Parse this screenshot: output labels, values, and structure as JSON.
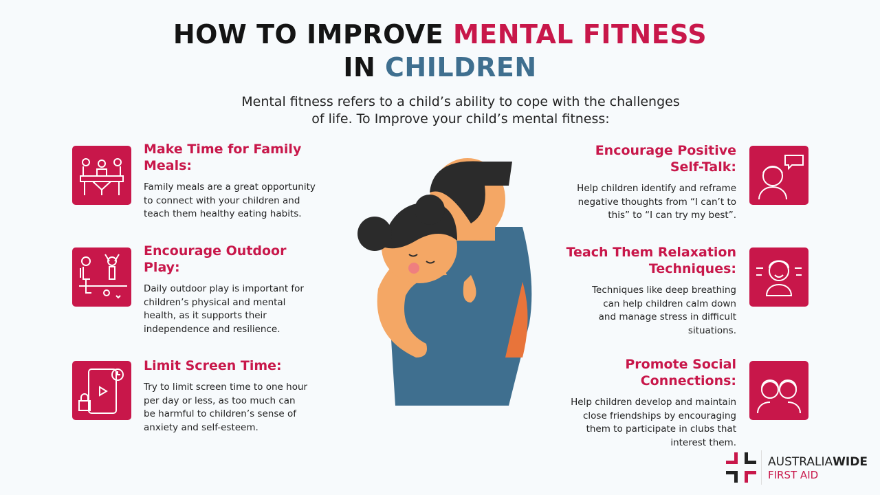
{
  "title": {
    "line1_a": "HOW TO IMPROVE ",
    "line1_b": "MENTAL FITNESS",
    "line2_a": "IN ",
    "line2_b": "CHILDREN"
  },
  "subtitle": "Mental fitness refers to a child’s ability to cope with the challenges of life. To Improve your child’s mental fitness:",
  "colors": {
    "accent": "#c8174a",
    "secondary": "#3f6f8f"
  },
  "left_items": [
    {
      "heading": "Make Time for Family Meals:",
      "body": "Family meals are a great opportunity to connect with your children and teach them healthy eating habits.",
      "icon": "family-meal-icon"
    },
    {
      "heading": "Encourage Outdoor Play:",
      "body": "Daily outdoor play is important for children’s physical and mental health, as it supports their independence and resilience.",
      "icon": "outdoor-play-icon"
    },
    {
      "heading": "Limit Screen Time:",
      "body": "Try to limit screen time to one hour per day or less, as too much can be harmful to children’s sense of anxiety and self-esteem.",
      "icon": "screen-time-icon"
    }
  ],
  "right_items": [
    {
      "heading": "Encourage Positive Self-Talk:",
      "body": "Help children identify and reframe negative thoughts from “I can’t to this” to “I can try my best”.",
      "icon": "self-talk-icon"
    },
    {
      "heading": "Teach Them Relaxation Techniques:",
      "body": "Techniques like deep breathing can help children calm down and manage stress in difficult situations.",
      "icon": "relaxation-icon"
    },
    {
      "heading": "Promote Social Connections:",
      "body": "Help children develop and maintain close friendships by encouraging them to participate in clubs that interest them.",
      "icon": "social-connections-icon"
    }
  ],
  "logo": {
    "name_a": "AUSTRALIA",
    "name_b": "WIDE",
    "sub": "FIRST AID"
  }
}
